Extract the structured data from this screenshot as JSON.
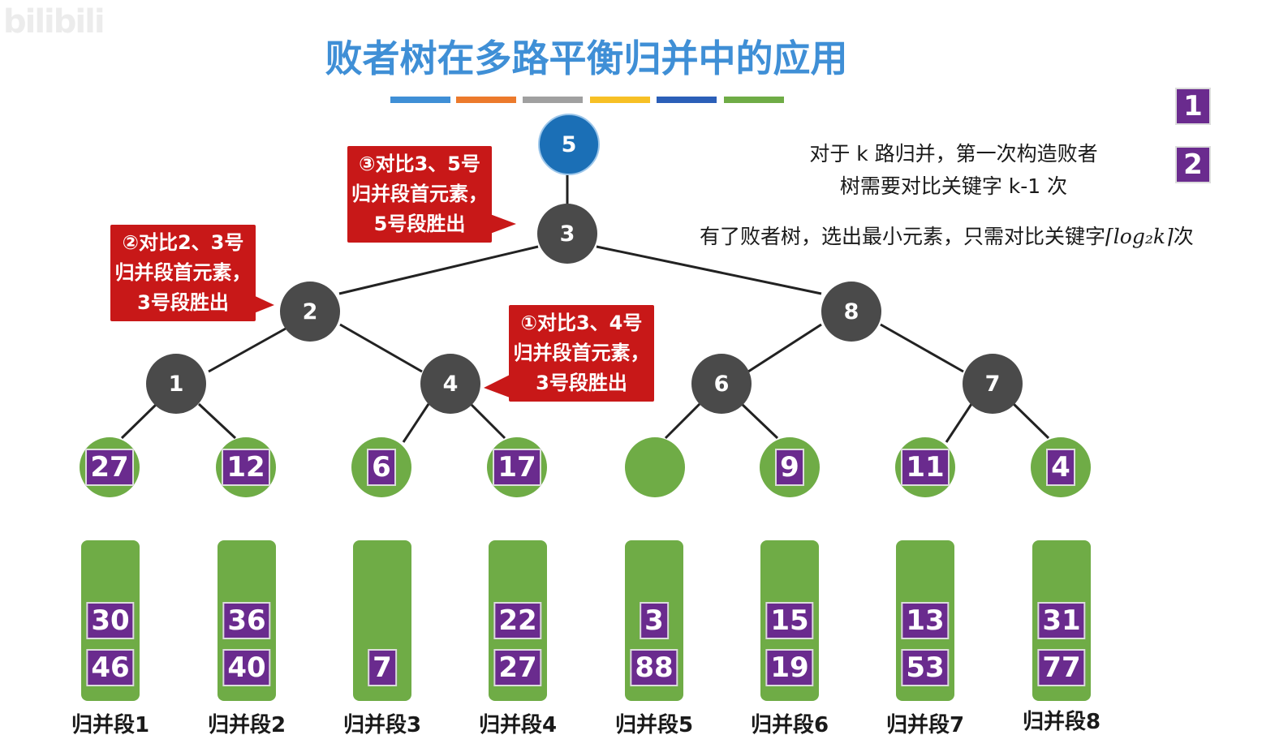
{
  "watermark": "bilibili",
  "title": "败者树在多路平衡归并中的应用",
  "color_bars": [
    "#3f8fd6",
    "#ec7a2c",
    "#a0a0a0",
    "#f7c025",
    "#2b5fb8",
    "#6fac46"
  ],
  "tree_nodes": [
    "5",
    "3",
    "2",
    "8",
    "1",
    "4",
    "6",
    "7"
  ],
  "leaf_keys": [
    "27",
    "12",
    "6",
    "17",
    "",
    "9",
    "11",
    "4"
  ],
  "segments": [
    {
      "top": "30",
      "bottom": "46",
      "label": "归并段1"
    },
    {
      "top": "36",
      "bottom": "40",
      "label": "归并段2"
    },
    {
      "top": "",
      "bottom": "7",
      "label": "归并段3"
    },
    {
      "top": "22",
      "bottom": "27",
      "label": "归并段4"
    },
    {
      "top": "3",
      "bottom": "88",
      "label": "归并段5"
    },
    {
      "top": "15",
      "bottom": "19",
      "label": "归并段6"
    },
    {
      "top": "13",
      "bottom": "53",
      "label": "归并段7"
    },
    {
      "top": "31",
      "bottom": "77",
      "label": "归并段8"
    }
  ],
  "callouts": {
    "c3": [
      "③对比3、5号",
      "归并段首元素，",
      "5号段胜出"
    ],
    "c2": [
      "②对比2、3号",
      "归并段首元素，",
      "3号段胜出"
    ],
    "c1": [
      "①对比3、4号",
      "归并段首元素，",
      "3号段胜出"
    ]
  },
  "legend": [
    "1",
    "2"
  ],
  "notes": {
    "line1": "对于 k 路归并，第一次构造败者",
    "line2": "树需要对比关键字 k-1 次",
    "line3_prefix": "有了败者树，选出最小元素，只需对比关键字",
    "line3_formula": "⌈log₂k⌉",
    "line3_suffix": "次"
  },
  "colors": {
    "title": "#3f8fd6",
    "root": "#1b6fb6",
    "internal_node": "#4a4a4a",
    "leaf": "#6fac46",
    "key_box": "#6a2b8e",
    "callout": "#c81818"
  }
}
